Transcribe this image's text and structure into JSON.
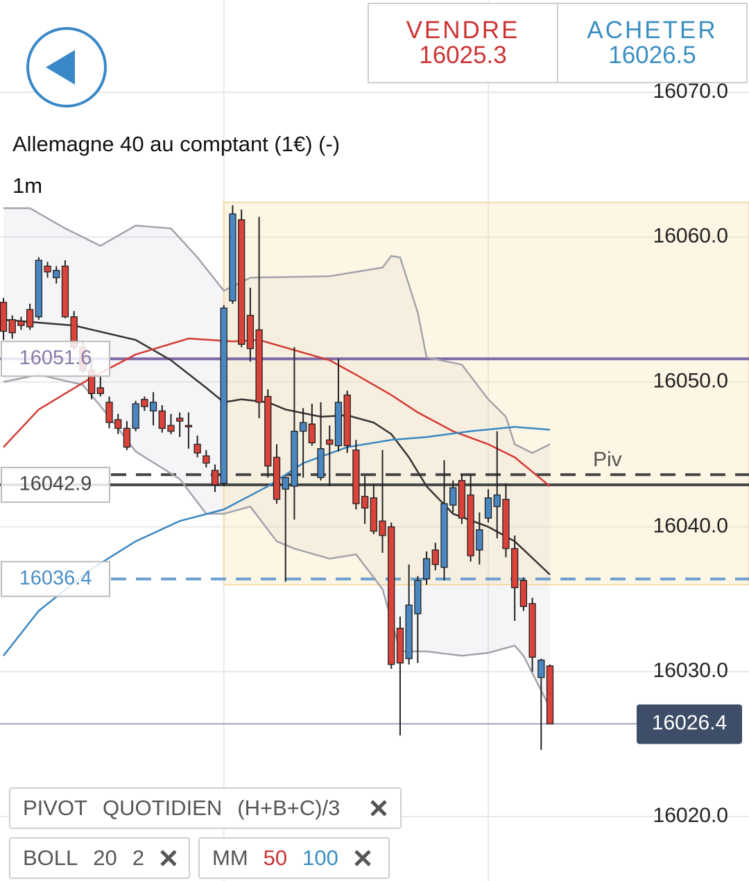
{
  "header": {
    "sell": {
      "label": "VENDRE",
      "price": "16025.3",
      "color": "#cc3333"
    },
    "buy": {
      "label": "ACHETER",
      "price": "16026.5",
      "color": "#3a8fc2"
    }
  },
  "instrument": {
    "name": "Allemagne 40 au comptant (1€) (-)",
    "timeframe": "1m"
  },
  "chart_data": {
    "type": "candlestick",
    "up_color": "#4a86c0",
    "down_color": "#d9433a",
    "x": [
      0,
      1,
      2,
      3,
      4,
      5,
      6,
      7,
      8,
      9,
      10,
      11,
      12,
      13,
      14,
      15,
      16,
      17,
      18,
      19,
      20,
      21,
      22,
      23,
      24,
      25,
      26,
      27,
      28,
      29,
      30,
      31,
      32,
      33,
      34,
      35,
      36,
      37,
      38,
      39,
      40,
      41,
      42,
      43,
      44,
      45,
      46,
      47,
      48,
      49,
      50,
      51,
      52,
      53,
      54,
      55,
      56,
      57,
      58,
      59,
      60,
      61,
      62
    ],
    "open": [
      16055.5,
      16054.3,
      16054.2,
      16055.0,
      16054.5,
      16058.0,
      16057.2,
      16058.0,
      16054.5,
      16052.4,
      16050.8,
      16049.6,
      16048.6,
      16047.4,
      16046.8,
      16046.8,
      16048.8,
      16048.0,
      16048.0,
      16047.0,
      16047.5,
      16047.0,
      16045.7,
      16044.9,
      16043.9,
      16043.0,
      16055.6,
      16061.2,
      16054.6,
      16053.6,
      16049.0,
      16044.8,
      16042.6,
      16042.8,
      16046.6,
      16047.1,
      16043.4,
      16046.0,
      16045.6,
      16049.1,
      16045.3,
      16042.1,
      16042.0,
      16040.4,
      16040.0,
      16033.0,
      16030.9,
      16034.0,
      16036.4,
      16038.4,
      16037.2,
      16041.5,
      16043.2,
      16042.2,
      16038.4,
      16040.6,
      16041.4,
      16041.9,
      16038.5,
      16036.3,
      16034.7,
      16029.6,
      16030.4
    ],
    "high": [
      16055.8,
      16054.6,
      16054.5,
      16055.4,
      16058.6,
      16058.3,
      16058.0,
      16058.4,
      16054.9,
      16052.8,
      16051.5,
      16050.4,
      16049.0,
      16047.8,
      16047.3,
      16048.7,
      16049.0,
      16049.3,
      16048.4,
      16047.8,
      16047.9,
      16047.9,
      16046.3,
      16045.3,
      16044.3,
      16055.3,
      16062.2,
      16061.9,
      16056.5,
      16061.4,
      16049.5,
      16045.7,
      16043.5,
      16052.4,
      16048.2,
      16048.5,
      16048.6,
      16047.0,
      16051.6,
      16049.4,
      16046.0,
      16043.5,
      16043.0,
      16045.3,
      16040.3,
      16033.8,
      16037.4,
      16036.6,
      16038.3,
      16038.9,
      16044.6,
      16043.2,
      16043.6,
      16043.6,
      16041.0,
      16042.6,
      16046.6,
      16043.0,
      16039.4,
      16036.5,
      16035.1,
      16030.9,
      16030.5
    ],
    "low": [
      16052.9,
      16053.0,
      16053.6,
      16053.6,
      16054.3,
      16057.2,
      16056.8,
      16054.4,
      16052.2,
      16050.6,
      16048.8,
      16049.0,
      16046.8,
      16046.4,
      16045.3,
      16046.6,
      16048.0,
      16047.0,
      16046.5,
      16046.4,
      16046.2,
      16045.4,
      16044.8,
      16044.1,
      16042.4,
      16042.8,
      16055.4,
      16052.4,
      16051.4,
      16047.5,
      16043.4,
      16041.6,
      16036.2,
      16040.5,
      16043.4,
      16045.6,
      16043.2,
      16042.8,
      16045.2,
      16045.1,
      16041.2,
      16040.2,
      16039.5,
      16038.2,
      16030.2,
      16025.6,
      16030.5,
      16030.6,
      16036.0,
      16037.0,
      16036.3,
      16041.0,
      16040.2,
      16037.6,
      16037.4,
      16040.3,
      16039.2,
      16037.9,
      16033.5,
      16034.2,
      16030.0,
      16024.6,
      16026.4
    ],
    "close": [
      16053.5,
      16053.4,
      16053.9,
      16053.8,
      16058.4,
      16057.6,
      16057.7,
      16054.5,
      16052.4,
      16050.8,
      16049.2,
      16049.2,
      16047.2,
      16046.8,
      16045.5,
      16048.5,
      16048.3,
      16048.6,
      16046.8,
      16046.6,
      16047.3,
      16046.9,
      16045.1,
      16044.4,
      16042.9,
      16055.1,
      16061.6,
      16052.6,
      16052.3,
      16048.6,
      16044.2,
      16041.9,
      16043.4,
      16046.6,
      16047.2,
      16045.8,
      16045.4,
      16045.7,
      16048.6,
      16045.6,
      16041.6,
      16041.3,
      16039.7,
      16039.4,
      16030.5,
      16030.6,
      16034.6,
      16036.3,
      16037.8,
      16037.4,
      16041.6,
      16042.7,
      16040.6,
      16038.0,
      16039.8,
      16042.0,
      16042.2,
      16038.5,
      16035.8,
      16034.5,
      16031.0,
      16030.8,
      16026.4
    ],
    "lines": [
      {
        "color": "#a3a3ab",
        "x": [
          0,
          3,
          7,
          11,
          15,
          19,
          22,
          25,
          28,
          37,
          43,
          44,
          45,
          47,
          48,
          52,
          55,
          57,
          58,
          60,
          62
        ],
        "values": [
          16062.0,
          16062.0,
          16060.6,
          16059.4,
          16060.8,
          16060.6,
          16058.6,
          16056.3,
          16057.2,
          16057.3,
          16057.9,
          16058.7,
          16058.6,
          16054.8,
          16051.7,
          16051.2,
          16048.8,
          16047.6,
          16045.7,
          16045.1,
          16045.7
        ]
      },
      {
        "color": "#a3a3ab",
        "x": [
          0,
          4,
          9,
          12,
          15,
          20,
          23,
          25,
          28,
          31,
          33,
          37,
          40,
          43,
          45,
          48,
          52,
          55,
          58,
          59,
          62
        ],
        "values": [
          16050.0,
          16050.5,
          16049.8,
          16047.6,
          16045.2,
          16043.3,
          16040.9,
          16040.9,
          16041.4,
          16039.0,
          16038.5,
          16037.8,
          16038.1,
          16035.7,
          16031.4,
          16031.4,
          16031.1,
          16031.3,
          16031.8,
          16031.1,
          16027.5
        ]
      },
      {
        "color": "#333333",
        "x": [
          0,
          8,
          15,
          19,
          23,
          25,
          27,
          30,
          32,
          36,
          39,
          42,
          44,
          46,
          48,
          51,
          55,
          58,
          62
        ],
        "values": [
          16054.3,
          16053.9,
          16052.9,
          16051.5,
          16049.6,
          16048.6,
          16048.8,
          16048.6,
          16048.1,
          16047.6,
          16047.7,
          16047.2,
          16046.4,
          16044.8,
          16042.8,
          16040.9,
          16040.0,
          16039.0,
          16036.7
        ]
      },
      {
        "color": "#d33b33",
        "x": [
          0,
          4,
          10,
          15,
          21,
          26,
          29,
          33,
          37,
          40,
          44,
          47,
          51,
          55,
          58,
          62
        ],
        "values": [
          16045.5,
          16048.1,
          16050.3,
          16051.9,
          16053.0,
          16052.8,
          16052.9,
          16052.2,
          16051.5,
          16050.5,
          16049.1,
          16047.9,
          16046.6,
          16045.7,
          16044.8,
          16042.8
        ]
      },
      {
        "color": "#3a87c0",
        "x": [
          0,
          4,
          10,
          15,
          20,
          25,
          30,
          34,
          39,
          44,
          48,
          53,
          58,
          62
        ],
        "values": [
          16031.1,
          16034.2,
          16037.1,
          16039.0,
          16040.4,
          16041.2,
          16042.8,
          16044.4,
          16045.5,
          16046.0,
          16046.2,
          16046.6,
          16046.9,
          16046.7
        ]
      }
    ],
    "fill_between": [
      0,
      1
    ],
    "fill_color": "rgba(200,200,215,0.18)",
    "zone": {
      "start": 25,
      "top": 16062.4,
      "bottom": 16036.0
    },
    "levels": [
      {
        "value": 16051.6,
        "color": "#7d68a6",
        "text_color": "#8a7aa8",
        "dashed": false
      },
      {
        "value": 16042.9,
        "color": "#444444",
        "text_color": "#444444",
        "dashed": false
      },
      {
        "value": 16036.4,
        "color": "#6a9fd0",
        "text_color": "#4b8ec8",
        "dashed": true
      }
    ],
    "pivot": {
      "value": 16043.6,
      "label": "Piv",
      "color": "#444444"
    },
    "last": {
      "value": 16026.4,
      "color": "#3e4e68"
    },
    "ylim": [
      16015.55,
      16076.37
    ],
    "yticks": [
      {
        "value": 16020,
        "label": "16020.0"
      },
      {
        "value": 16030,
        "label": "16030.0"
      },
      {
        "value": 16040,
        "label": "16040.0"
      },
      {
        "value": 16050,
        "label": "16050.0"
      },
      {
        "value": 16060,
        "label": "16060.0"
      },
      {
        "value": 16070,
        "label": "16070.0"
      }
    ],
    "xticks": [
      25,
      55
    ],
    "grid": true
  },
  "indicators": [
    {
      "parts": [
        {
          "text": "PIVOT"
        },
        {
          "text": "QUOTIDIEN"
        },
        {
          "text": "(H+B+C)/3"
        }
      ]
    },
    {
      "parts": [
        {
          "text": "BOLL"
        },
        {
          "text": "20"
        },
        {
          "text": "2"
        }
      ]
    },
    {
      "parts": [
        {
          "text": "MM"
        },
        {
          "text": "50",
          "color": "#cc3333"
        },
        {
          "text": "100",
          "color": "#3a8fc2"
        }
      ]
    }
  ]
}
